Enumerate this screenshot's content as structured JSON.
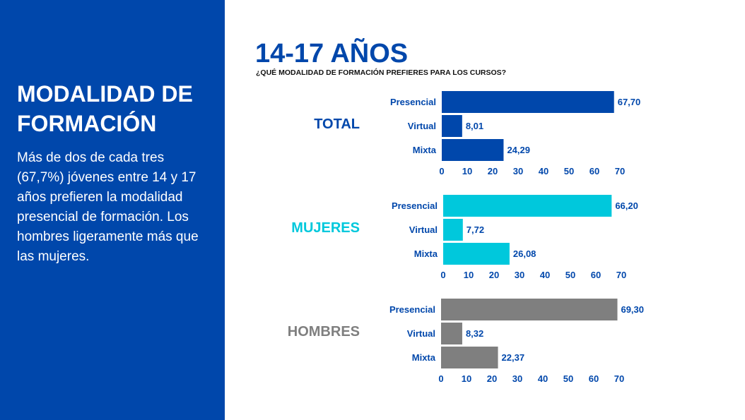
{
  "sidebar": {
    "title": "MODALIDAD DE FORMACIÓN",
    "description": "Más de dos de cada tres (67,7%) jóvenes entre 14 y 17 años prefieren la modalidad presencial de formación. Los hombres ligeramente más que las mujeres."
  },
  "header": {
    "title": "14-17 AÑOS",
    "subtitle": "¿QUÉ MODALIDAD DE FORMACIÓN PREFIERES PARA LOS CURSOS?"
  },
  "chart_data": [
    {
      "type": "bar",
      "orientation": "horizontal",
      "group": "TOTAL",
      "color": "#0047AB",
      "categories": [
        "Presencial",
        "Virtual",
        "Mixta"
      ],
      "values": [
        67.7,
        8.01,
        24.29
      ],
      "value_labels": [
        "67,70",
        "8,01",
        "24,29"
      ],
      "xticks": [
        0,
        10,
        20,
        30,
        40,
        50,
        60,
        70
      ],
      "xlim": [
        0,
        70
      ]
    },
    {
      "type": "bar",
      "orientation": "horizontal",
      "group": "MUJERES",
      "color": "#00C8DC",
      "categories": [
        "Presencial",
        "Virtual",
        "Mixta"
      ],
      "values": [
        66.2,
        7.72,
        26.08
      ],
      "value_labels": [
        "66,20",
        "7,72",
        "26,08"
      ],
      "xticks": [
        0,
        10,
        20,
        30,
        40,
        50,
        60,
        70
      ],
      "xlim": [
        0,
        70
      ]
    },
    {
      "type": "bar",
      "orientation": "horizontal",
      "group": "HOMBRES",
      "color": "#7F7F7F",
      "categories": [
        "Presencial",
        "Virtual",
        "Mixta"
      ],
      "values": [
        69.3,
        8.32,
        22.37
      ],
      "value_labels": [
        "69,30",
        "8,32",
        "22,37"
      ],
      "xticks": [
        0,
        10,
        20,
        30,
        40,
        50,
        60,
        70
      ],
      "xlim": [
        0,
        70
      ]
    }
  ]
}
